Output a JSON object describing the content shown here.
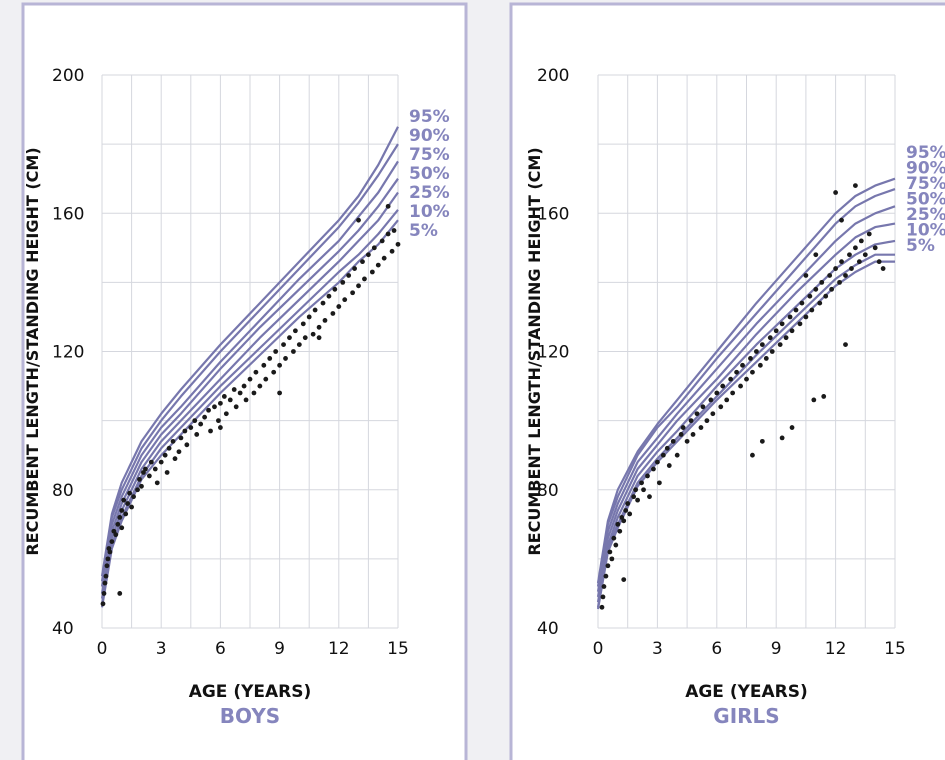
{
  "colors": {
    "accent": "#8585bd",
    "curve": "#7777ad",
    "dot": "#1a1a1a",
    "grid": "#d5d7de",
    "frame": "#b8b5d6",
    "text": "#111111",
    "background": "#f0f0f3"
  },
  "chart_data": [
    {
      "type": "line",
      "title": "BOYS",
      "xlabel": "AGE (YEARS)",
      "ylabel": "RECUMBENT LENGTH/STANDING HEIGHT (CM)",
      "xlim": [
        0,
        15
      ],
      "ylim": [
        40,
        200
      ],
      "xticks": [
        0,
        3,
        6,
        9,
        12,
        15
      ],
      "yticks": [
        40,
        80,
        120,
        160,
        200
      ],
      "x": [
        0,
        0.5,
        1,
        2,
        3,
        4,
        6,
        8,
        10,
        12,
        13,
        14,
        15
      ],
      "series": [
        {
          "name": "95%",
          "values": [
            55,
            73,
            82,
            94,
            102,
            109,
            122,
            134,
            146,
            158,
            165,
            174,
            185
          ]
        },
        {
          "name": "90%",
          "values": [
            53.5,
            72,
            80,
            92,
            100,
            107,
            120,
            132,
            144,
            156,
            163,
            171,
            180
          ]
        },
        {
          "name": "75%",
          "values": [
            52,
            70,
            78,
            90,
            98,
            104,
            117,
            129,
            141,
            152,
            159,
            166,
            175
          ]
        },
        {
          "name": "50%",
          "values": [
            50,
            68,
            76,
            88,
            96,
            102,
            115,
            127,
            138,
            149,
            155,
            162,
            170
          ]
        },
        {
          "name": "25%",
          "values": [
            48.5,
            66,
            74,
            86,
            94,
            100,
            112,
            124,
            135,
            146,
            152,
            158,
            166
          ]
        },
        {
          "name": "10%",
          "values": [
            47,
            64,
            72,
            84,
            92,
            98,
            110,
            121,
            132,
            143,
            148,
            154,
            161
          ]
        },
        {
          "name": "5%",
          "values": [
            46,
            63,
            71,
            83,
            90,
            96,
            108,
            119,
            130,
            140,
            146,
            151,
            158
          ]
        }
      ],
      "points": [
        [
          0.05,
          47
        ],
        [
          0.1,
          50
        ],
        [
          0.15,
          53
        ],
        [
          0.2,
          55
        ],
        [
          0.25,
          58
        ],
        [
          0.3,
          60
        ],
        [
          0.35,
          63
        ],
        [
          0.4,
          62
        ],
        [
          0.5,
          65
        ],
        [
          0.6,
          68
        ],
        [
          0.7,
          67
        ],
        [
          0.8,
          70
        ],
        [
          0.9,
          72
        ],
        [
          1.0,
          74
        ],
        [
          1.0,
          69
        ],
        [
          1.1,
          77
        ],
        [
          1.2,
          73
        ],
        [
          1.3,
          76
        ],
        [
          1.4,
          79
        ],
        [
          1.5,
          75
        ],
        [
          1.6,
          78
        ],
        [
          1.8,
          80
        ],
        [
          1.9,
          83
        ],
        [
          2.0,
          81
        ],
        [
          2.1,
          85
        ],
        [
          2.2,
          86
        ],
        [
          2.4,
          84
        ],
        [
          2.5,
          88
        ],
        [
          2.7,
          86
        ],
        [
          2.8,
          82
        ],
        [
          3.0,
          88
        ],
        [
          3.2,
          90
        ],
        [
          3.3,
          85
        ],
        [
          3.4,
          92
        ],
        [
          3.6,
          94
        ],
        [
          3.7,
          89
        ],
        [
          3.9,
          91
        ],
        [
          4.0,
          95
        ],
        [
          4.2,
          97
        ],
        [
          4.3,
          93
        ],
        [
          4.5,
          98
        ],
        [
          4.7,
          100
        ],
        [
          4.8,
          96
        ],
        [
          5.0,
          99
        ],
        [
          5.2,
          101
        ],
        [
          5.4,
          103
        ],
        [
          5.5,
          97
        ],
        [
          5.7,
          104
        ],
        [
          5.9,
          100
        ],
        [
          6.0,
          105
        ],
        [
          6.2,
          107
        ],
        [
          6.3,
          102
        ],
        [
          6.5,
          106
        ],
        [
          6.7,
          109
        ],
        [
          6.8,
          104
        ],
        [
          7.0,
          108
        ],
        [
          7.2,
          110
        ],
        [
          7.3,
          106
        ],
        [
          7.5,
          112
        ],
        [
          7.7,
          108
        ],
        [
          7.8,
          114
        ],
        [
          8.0,
          110
        ],
        [
          8.2,
          116
        ],
        [
          8.3,
          112
        ],
        [
          8.5,
          118
        ],
        [
          8.7,
          114
        ],
        [
          8.8,
          120
        ],
        [
          9.0,
          116
        ],
        [
          9.2,
          122
        ],
        [
          9.3,
          118
        ],
        [
          9.5,
          124
        ],
        [
          9.7,
          120
        ],
        [
          9.8,
          126
        ],
        [
          10.0,
          122
        ],
        [
          10.2,
          128
        ],
        [
          10.3,
          124
        ],
        [
          10.5,
          130
        ],
        [
          10.7,
          125
        ],
        [
          10.8,
          132
        ],
        [
          11.0,
          127
        ],
        [
          11.2,
          134
        ],
        [
          11.3,
          129
        ],
        [
          11.5,
          136
        ],
        [
          11.7,
          131
        ],
        [
          11.8,
          138
        ],
        [
          12.0,
          133
        ],
        [
          12.2,
          140
        ],
        [
          12.3,
          135
        ],
        [
          12.5,
          142
        ],
        [
          12.7,
          137
        ],
        [
          12.8,
          144
        ],
        [
          13.0,
          139
        ],
        [
          13.2,
          146
        ],
        [
          13.3,
          141
        ],
        [
          13.5,
          148
        ],
        [
          13.7,
          143
        ],
        [
          13.8,
          150
        ],
        [
          14.0,
          145
        ],
        [
          14.2,
          152
        ],
        [
          14.3,
          147
        ],
        [
          14.5,
          154
        ],
        [
          14.7,
          149
        ],
        [
          14.8,
          155
        ],
        [
          15.0,
          151
        ],
        [
          0.9,
          50
        ],
        [
          9.0,
          108
        ],
        [
          11.0,
          124
        ],
        [
          13.0,
          158
        ],
        [
          14.5,
          162
        ],
        [
          6.0,
          98
        ]
      ]
    },
    {
      "type": "line",
      "title": "GIRLS",
      "xlabel": "AGE (YEARS)",
      "ylabel": "RECUMBENT LENGTH/STANDING HEIGHT (CM)",
      "xlim": [
        0,
        15
      ],
      "ylim": [
        40,
        200
      ],
      "xticks": [
        0,
        3,
        6,
        9,
        12,
        15
      ],
      "yticks": [
        40,
        80,
        120,
        160,
        200
      ],
      "x": [
        0,
        0.5,
        1,
        2,
        3,
        4,
        6,
        8,
        10,
        12,
        13,
        14,
        15
      ],
      "series": [
        {
          "name": "95%",
          "values": [
            53,
            71,
            80,
            91,
            99,
            106,
            120,
            134,
            147,
            160,
            165,
            168,
            170
          ]
        },
        {
          "name": "90%",
          "values": [
            52,
            70,
            78,
            90,
            98,
            104,
            118,
            131,
            144,
            157,
            162,
            165,
            167
          ]
        },
        {
          "name": "75%",
          "values": [
            50.5,
            68,
            76,
            88,
            95,
            102,
            115,
            128,
            140,
            152,
            157,
            160,
            162
          ]
        },
        {
          "name": "50%",
          "values": [
            49,
            66,
            74,
            86,
            93,
            100,
            112,
            125,
            137,
            148,
            153,
            156,
            157
          ]
        },
        {
          "name": "25%",
          "values": [
            47.5,
            64,
            72,
            84,
            91,
            97,
            110,
            122,
            133,
            144,
            148,
            151,
            152
          ]
        },
        {
          "name": "10%",
          "values": [
            46,
            63,
            70,
            82,
            89,
            95,
            107,
            119,
            130,
            141,
            145,
            148,
            148
          ]
        },
        {
          "name": "5%",
          "values": [
            45.5,
            62,
            69,
            81,
            88,
            94,
            106,
            117,
            128,
            139,
            143,
            146,
            146
          ]
        }
      ],
      "points": [
        [
          0.2,
          46
        ],
        [
          0.25,
          49
        ],
        [
          0.3,
          52
        ],
        [
          0.4,
          55
        ],
        [
          0.5,
          58
        ],
        [
          0.6,
          62
        ],
        [
          0.7,
          60
        ],
        [
          0.8,
          66
        ],
        [
          0.9,
          64
        ],
        [
          1.0,
          70
        ],
        [
          1.1,
          68
        ],
        [
          1.2,
          72
        ],
        [
          1.3,
          71
        ],
        [
          1.4,
          74
        ],
        [
          1.5,
          76
        ],
        [
          1.6,
          73
        ],
        [
          1.8,
          78
        ],
        [
          1.9,
          80
        ],
        [
          2.0,
          77
        ],
        [
          2.2,
          82
        ],
        [
          2.3,
          80
        ],
        [
          2.5,
          84
        ],
        [
          2.6,
          78
        ],
        [
          2.8,
          86
        ],
        [
          3.0,
          88
        ],
        [
          3.1,
          82
        ],
        [
          3.3,
          90
        ],
        [
          3.5,
          92
        ],
        [
          3.6,
          87
        ],
        [
          3.8,
          94
        ],
        [
          4.0,
          90
        ],
        [
          4.2,
          96
        ],
        [
          4.3,
          98
        ],
        [
          4.5,
          94
        ],
        [
          4.7,
          100
        ],
        [
          4.8,
          96
        ],
        [
          5.0,
          102
        ],
        [
          5.2,
          98
        ],
        [
          5.3,
          104
        ],
        [
          5.5,
          100
        ],
        [
          5.7,
          106
        ],
        [
          5.8,
          102
        ],
        [
          6.0,
          108
        ],
        [
          6.2,
          104
        ],
        [
          6.3,
          110
        ],
        [
          6.5,
          106
        ],
        [
          6.7,
          112
        ],
        [
          6.8,
          108
        ],
        [
          7.0,
          114
        ],
        [
          7.2,
          110
        ],
        [
          7.3,
          116
        ],
        [
          7.5,
          112
        ],
        [
          7.7,
          118
        ],
        [
          7.8,
          114
        ],
        [
          8.0,
          120
        ],
        [
          8.2,
          116
        ],
        [
          8.3,
          122
        ],
        [
          8.5,
          118
        ],
        [
          8.7,
          124
        ],
        [
          8.8,
          120
        ],
        [
          9.0,
          126
        ],
        [
          9.2,
          122
        ],
        [
          9.3,
          128
        ],
        [
          9.5,
          124
        ],
        [
          9.7,
          130
        ],
        [
          9.8,
          126
        ],
        [
          10.0,
          132
        ],
        [
          10.2,
          128
        ],
        [
          10.3,
          134
        ],
        [
          10.5,
          130
        ],
        [
          10.7,
          136
        ],
        [
          10.8,
          132
        ],
        [
          11.0,
          138
        ],
        [
          11.2,
          134
        ],
        [
          11.3,
          140
        ],
        [
          11.5,
          136
        ],
        [
          11.7,
          142
        ],
        [
          11.8,
          138
        ],
        [
          12.0,
          144
        ],
        [
          12.2,
          140
        ],
        [
          12.3,
          146
        ],
        [
          12.5,
          142
        ],
        [
          12.7,
          148
        ],
        [
          12.8,
          144
        ],
        [
          13.0,
          150
        ],
        [
          13.2,
          146
        ],
        [
          13.3,
          152
        ],
        [
          13.5,
          148
        ],
        [
          13.7,
          154
        ],
        [
          14.0,
          150
        ],
        [
          14.2,
          146
        ],
        [
          14.4,
          144
        ],
        [
          12.0,
          166
        ],
        [
          13.0,
          168
        ],
        [
          1.3,
          54
        ],
        [
          7.8,
          90
        ],
        [
          8.3,
          94
        ],
        [
          9.3,
          95
        ],
        [
          9.8,
          98
        ],
        [
          10.9,
          106
        ],
        [
          11.4,
          107
        ],
        [
          12.5,
          122
        ],
        [
          11.0,
          148
        ],
        [
          12.3,
          158
        ],
        [
          10.5,
          142
        ]
      ]
    }
  ]
}
